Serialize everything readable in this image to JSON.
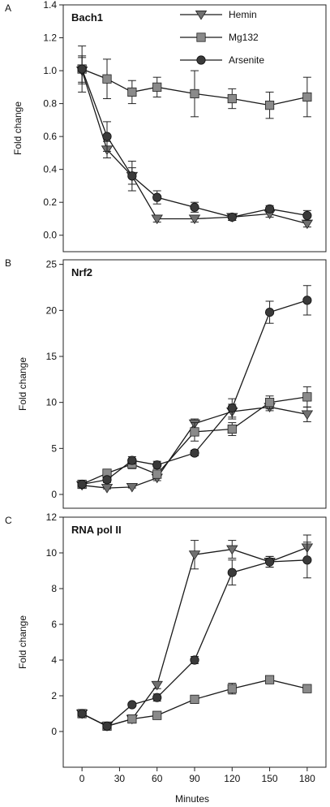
{
  "figure": {
    "shared_xlabel": "Minutes",
    "legend": [
      {
        "name": "Hemin",
        "marker": "triangle-down"
      },
      {
        "name": "Mg132",
        "marker": "square"
      },
      {
        "name": "Arsenite",
        "marker": "circle"
      }
    ]
  },
  "chart_data": [
    {
      "type": "line",
      "panel_letter": "A",
      "title": "Bach1",
      "xlabel": "",
      "ylabel": "Fold change",
      "x": [
        0,
        20,
        40,
        60,
        90,
        120,
        150,
        180
      ],
      "xlim": [
        -15,
        195
      ],
      "ylim": [
        -0.1,
        1.4
      ],
      "yticks": [
        0.0,
        0.2,
        0.4,
        0.6,
        0.8,
        1.0,
        1.2,
        1.4
      ],
      "ytick_labels": [
        "0.0",
        "0.2",
        "0.4",
        "0.6",
        "0.8",
        "1.0",
        "1.2",
        "1.4"
      ],
      "legend_position": "top-right",
      "grid": false,
      "series": [
        {
          "name": "Hemin",
          "marker": "triangle-down",
          "values": [
            1.0,
            0.52,
            0.36,
            0.1,
            0.1,
            0.11,
            0.13,
            0.07
          ],
          "errors": [
            0.08,
            0.05,
            0.05,
            0.02,
            0.02,
            0.02,
            0.02,
            0.02
          ]
        },
        {
          "name": "Mg132",
          "marker": "square",
          "values": [
            1.01,
            0.95,
            0.87,
            0.9,
            0.86,
            0.83,
            0.79,
            0.84
          ],
          "errors": [
            0.14,
            0.12,
            0.07,
            0.06,
            0.14,
            0.06,
            0.08,
            0.12
          ]
        },
        {
          "name": "Arsenite",
          "marker": "circle",
          "values": [
            1.01,
            0.6,
            0.36,
            0.23,
            0.17,
            0.11,
            0.16,
            0.12
          ],
          "errors": [
            0.08,
            0.09,
            0.09,
            0.04,
            0.03,
            0.02,
            0.02,
            0.03
          ]
        }
      ]
    },
    {
      "type": "line",
      "panel_letter": "B",
      "title": "Nrf2",
      "xlabel": "",
      "ylabel": "Fold change",
      "x": [
        0,
        20,
        40,
        60,
        90,
        120,
        150,
        180
      ],
      "xlim": [
        -15,
        195
      ],
      "ylim": [
        -1.5,
        25.5
      ],
      "yticks": [
        0,
        5,
        10,
        15,
        20,
        25
      ],
      "ytick_labels": [
        "0",
        "5",
        "10",
        "15",
        "20",
        "25"
      ],
      "grid": false,
      "series": [
        {
          "name": "Hemin",
          "marker": "triangle-down",
          "values": [
            1.0,
            0.7,
            0.8,
            1.8,
            7.7,
            9.0,
            9.5,
            8.7
          ],
          "errors": [
            0.1,
            0.1,
            0.1,
            0.3,
            0.5,
            0.8,
            0.4,
            0.8
          ]
        },
        {
          "name": "Mg132",
          "marker": "square",
          "values": [
            1.1,
            2.3,
            3.3,
            2.2,
            6.8,
            7.1,
            10.0,
            10.6
          ],
          "errors": [
            0.2,
            0.3,
            0.5,
            0.4,
            1.0,
            0.7,
            0.7,
            1.1
          ]
        },
        {
          "name": "Arsenite",
          "marker": "circle",
          "values": [
            1.1,
            1.6,
            3.7,
            3.2,
            4.5,
            9.4,
            19.8,
            21.1
          ],
          "errors": [
            0.2,
            0.3,
            0.4,
            0.4,
            0.3,
            1.0,
            1.2,
            1.6
          ]
        }
      ]
    },
    {
      "type": "line",
      "panel_letter": "C",
      "title": "RNA pol II",
      "xlabel": "Minutes",
      "ylabel": "Fold change",
      "x": [
        0,
        20,
        40,
        60,
        90,
        120,
        150,
        180
      ],
      "xlim": [
        -15,
        195
      ],
      "ylim": [
        -2.0,
        12.0
      ],
      "yticks": [
        0,
        2,
        4,
        6,
        8,
        10,
        12
      ],
      "ytick_labels": [
        "0",
        "2",
        "4",
        "6",
        "8",
        "10",
        "12"
      ],
      "xticks": [
        0,
        30,
        60,
        90,
        120,
        150,
        180
      ],
      "grid": false,
      "series": [
        {
          "name": "Hemin",
          "marker": "triangle-down",
          "values": [
            1.0,
            0.3,
            0.7,
            2.6,
            9.9,
            10.2,
            9.5,
            10.3
          ],
          "errors": [
            0.1,
            0.1,
            0.1,
            0.2,
            0.8,
            0.5,
            0.3,
            0.7
          ]
        },
        {
          "name": "Mg132",
          "marker": "square",
          "values": [
            1.0,
            0.3,
            0.7,
            0.9,
            1.8,
            2.4,
            2.9,
            2.4
          ],
          "errors": [
            0.1,
            0.1,
            0.1,
            0.1,
            0.1,
            0.3,
            0.1,
            0.1
          ]
        },
        {
          "name": "Arsenite",
          "marker": "circle",
          "values": [
            1.0,
            0.3,
            1.5,
            1.9,
            4.0,
            8.9,
            9.5,
            9.6
          ],
          "errors": [
            0.1,
            0.1,
            0.1,
            0.2,
            0.2,
            0.7,
            0.3,
            1.0
          ]
        }
      ]
    }
  ]
}
